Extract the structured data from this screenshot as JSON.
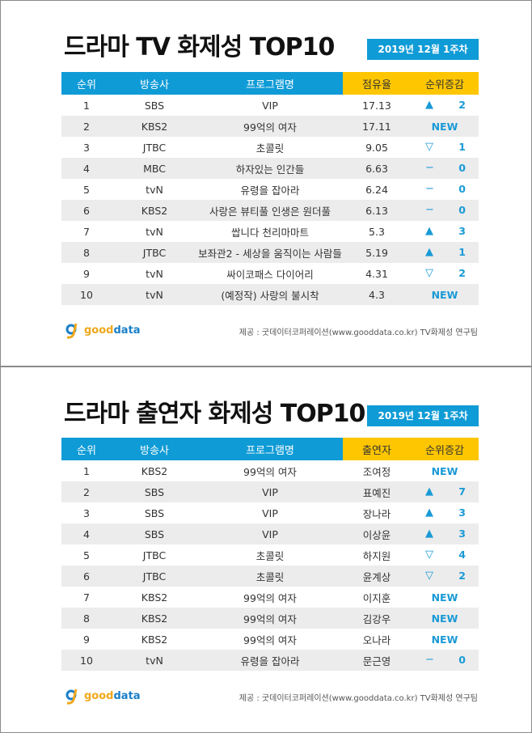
{
  "panels": [
    {
      "title": "드라마 TV 화제성 TOP10",
      "date": "2019년 12월 1주차",
      "headers": [
        "순위",
        "방송사",
        "프로그램명",
        "점유율",
        "순위증감"
      ],
      "rows": [
        [
          "1",
          "SBS",
          "VIP",
          "17.13",
          "up",
          "2"
        ],
        [
          "2",
          "KBS2",
          "99억의 여자",
          "17.11",
          "new",
          "NEW"
        ],
        [
          "3",
          "JTBC",
          "초콜릿",
          "9.05",
          "down",
          "1"
        ],
        [
          "4",
          "MBC",
          "하자있는 인간들",
          "6.63",
          "same",
          "0"
        ],
        [
          "5",
          "tvN",
          "유령을 잡아라",
          "6.24",
          "same",
          "0"
        ],
        [
          "6",
          "KBS2",
          "사랑은 뷰티풀 인생은 원더풀",
          "6.13",
          "same",
          "0"
        ],
        [
          "7",
          "tvN",
          "쌉니다 천리마마트",
          "5.3",
          "up",
          "3"
        ],
        [
          "8",
          "JTBC",
          "보좌관2 - 세상을 움직이는 사람들",
          "5.19",
          "up",
          "1"
        ],
        [
          "9",
          "tvN",
          "싸이코패스 다이어리",
          "4.31",
          "down",
          "2"
        ],
        [
          "10",
          "tvN",
          "(예정작) 사랑의 불시착",
          "4.3",
          "new",
          "NEW"
        ]
      ],
      "logo": [
        "good",
        "data"
      ],
      "source": "제공 : 굿데이터코퍼레이션(www.gooddata.co.kr) TV화제성 연구팀"
    },
    {
      "title": "드라마 출연자 화제성 TOP10",
      "date": "2019년 12월 1주차",
      "headers": [
        "순위",
        "방송사",
        "프로그램명",
        "출연자",
        "순위증감"
      ],
      "rows": [
        [
          "1",
          "KBS2",
          "99억의 여자",
          "조여정",
          "new",
          "NEW"
        ],
        [
          "2",
          "SBS",
          "VIP",
          "표예진",
          "up",
          "7"
        ],
        [
          "3",
          "SBS",
          "VIP",
          "장나라",
          "up",
          "3"
        ],
        [
          "4",
          "SBS",
          "VIP",
          "이상윤",
          "up",
          "3"
        ],
        [
          "5",
          "JTBC",
          "초콜릿",
          "하지원",
          "down",
          "4"
        ],
        [
          "6",
          "JTBC",
          "초콜릿",
          "윤계상",
          "down",
          "2"
        ],
        [
          "7",
          "KBS2",
          "99억의 여자",
          "이지훈",
          "new",
          "NEW"
        ],
        [
          "8",
          "KBS2",
          "99억의 여자",
          "김강우",
          "new",
          "NEW"
        ],
        [
          "9",
          "KBS2",
          "99억의 여자",
          "오나라",
          "new",
          "NEW"
        ],
        [
          "10",
          "tvN",
          "유령을 잡아라",
          "문근영",
          "same",
          "0"
        ]
      ],
      "logo": [
        "good",
        "data"
      ],
      "source": "제공 : 굿데이터코퍼레이션(www.gooddata.co.kr) TV화제성 연구팀"
    }
  ],
  "symbols": {
    "up": "▲",
    "down": "▽",
    "same": "−"
  },
  "colors": {
    "blue": "#0f9bd6",
    "yellow": "#fdc600",
    "row_alt": "#ececec"
  }
}
